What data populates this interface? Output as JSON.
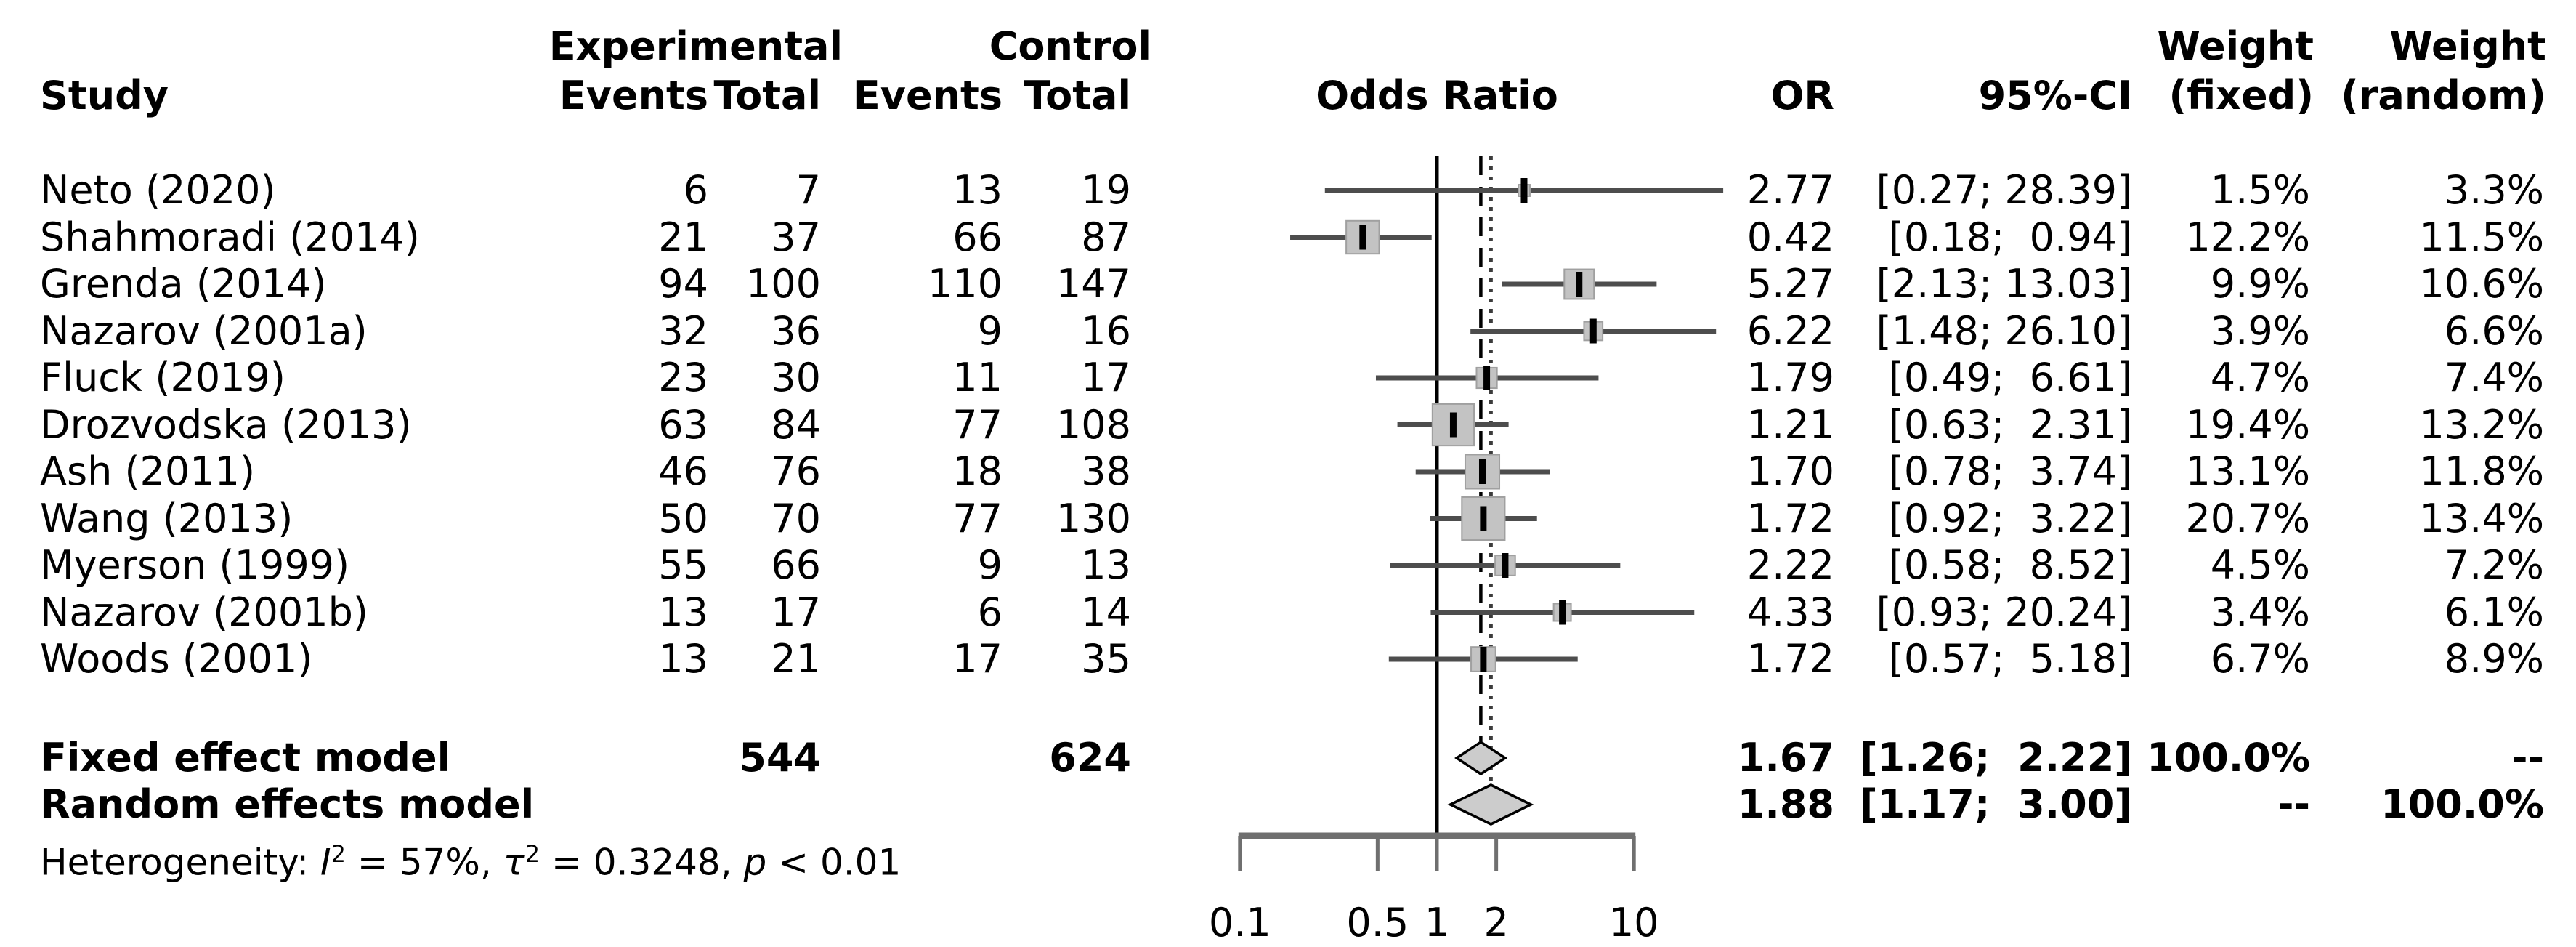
{
  "header": {
    "group_experimental": "Experimental",
    "group_control": "Control",
    "weight_top_fixed": "Weight",
    "weight_top_random": "Weight",
    "study": "Study",
    "events_exp": "Events",
    "total_exp": "Total",
    "events_ctrl": "Events",
    "total_ctrl": "Total",
    "odds_ratio": "Odds Ratio",
    "or": "OR",
    "ci": "95%-CI",
    "weight_fixed_sub": "(fixed)",
    "weight_random_sub": "(random)"
  },
  "heterogeneity": {
    "prefix": "Heterogeneity: ",
    "i_sym": "I",
    "i_sup": "2",
    "mid1": " = 57%, ",
    "tau_sym": "τ",
    "tau_sup": "2",
    "mid2": " = 0.3248, ",
    "p_sym": "p",
    "tail": " < 0.01"
  },
  "colors": {
    "text": "#000000",
    "whisker": "#4d4d4d",
    "square_fill": "#c3c3c3",
    "square_stroke": "#a0a0a0",
    "marker": "#000000",
    "ref_line": "#000000",
    "fixed_line": "#000000",
    "random_line": "#3c3c3c",
    "diamond_fill": "#cccccc",
    "diamond_stroke": "#000000",
    "axis": "#6f6f6f"
  },
  "chart_data": {
    "type": "forest",
    "x_scale": "log10",
    "ref_value": 1,
    "axis_ticks": [
      0.1,
      0.5,
      1,
      2,
      10
    ],
    "axis_tick_labels": [
      "0.1",
      "0.5",
      "1",
      "2",
      "10"
    ],
    "axis_range": [
      0.1,
      10
    ],
    "effect_measure": "Odds Ratio",
    "studies": [
      {
        "label": "Neto (2020)",
        "exp_events": "6",
        "exp_total": "7",
        "ctrl_events": "13",
        "ctrl_total": "19",
        "or": 2.77,
        "ci_low": 0.27,
        "ci_high": 28.39,
        "or_text": "2.77",
        "ci_text": "[0.27; 28.39]",
        "w_fixed": "1.5%",
        "w_random": "3.3%",
        "w_fixed_val": 1.5
      },
      {
        "label": "Shahmoradi (2014)",
        "exp_events": "21",
        "exp_total": "37",
        "ctrl_events": "66",
        "ctrl_total": "87",
        "or": 0.42,
        "ci_low": 0.18,
        "ci_high": 0.94,
        "or_text": "0.42",
        "ci_text": "[0.18;  0.94]",
        "w_fixed": "12.2%",
        "w_random": "11.5%",
        "w_fixed_val": 12.2
      },
      {
        "label": "Grenda (2014)",
        "exp_events": "94",
        "exp_total": "100",
        "ctrl_events": "110",
        "ctrl_total": "147",
        "or": 5.27,
        "ci_low": 2.13,
        "ci_high": 13.03,
        "or_text": "5.27",
        "ci_text": "[2.13; 13.03]",
        "w_fixed": "9.9%",
        "w_random": "10.6%",
        "w_fixed_val": 9.9
      },
      {
        "label": "Nazarov (2001a)",
        "exp_events": "32",
        "exp_total": "36",
        "ctrl_events": "9",
        "ctrl_total": "16",
        "or": 6.22,
        "ci_low": 1.48,
        "ci_high": 26.1,
        "or_text": "6.22",
        "ci_text": "[1.48; 26.10]",
        "w_fixed": "3.9%",
        "w_random": "6.6%",
        "w_fixed_val": 3.9
      },
      {
        "label": "Fluck (2019)",
        "exp_events": "23",
        "exp_total": "30",
        "ctrl_events": "11",
        "ctrl_total": "17",
        "or": 1.79,
        "ci_low": 0.49,
        "ci_high": 6.61,
        "or_text": "1.79",
        "ci_text": "[0.49;  6.61]",
        "w_fixed": "4.7%",
        "w_random": "7.4%",
        "w_fixed_val": 4.7
      },
      {
        "label": "Drozvodska (2013)",
        "exp_events": "63",
        "exp_total": "84",
        "ctrl_events": "77",
        "ctrl_total": "108",
        "or": 1.21,
        "ci_low": 0.63,
        "ci_high": 2.31,
        "or_text": "1.21",
        "ci_text": "[0.63;  2.31]",
        "w_fixed": "19.4%",
        "w_random": "13.2%",
        "w_fixed_val": 19.4
      },
      {
        "label": "Ash (2011)",
        "exp_events": "46",
        "exp_total": "76",
        "ctrl_events": "18",
        "ctrl_total": "38",
        "or": 1.7,
        "ci_low": 0.78,
        "ci_high": 3.74,
        "or_text": "1.70",
        "ci_text": "[0.78;  3.74]",
        "w_fixed": "13.1%",
        "w_random": "11.8%",
        "w_fixed_val": 13.1
      },
      {
        "label": "Wang (2013)",
        "exp_events": "50",
        "exp_total": "70",
        "ctrl_events": "77",
        "ctrl_total": "130",
        "or": 1.72,
        "ci_low": 0.92,
        "ci_high": 3.22,
        "or_text": "1.72",
        "ci_text": "[0.92;  3.22]",
        "w_fixed": "20.7%",
        "w_random": "13.4%",
        "w_fixed_val": 20.7
      },
      {
        "label": "Myerson (1999)",
        "exp_events": "55",
        "exp_total": "66",
        "ctrl_events": "9",
        "ctrl_total": "13",
        "or": 2.22,
        "ci_low": 0.58,
        "ci_high": 8.52,
        "or_text": "2.22",
        "ci_text": "[0.58;  8.52]",
        "w_fixed": "4.5%",
        "w_random": "7.2%",
        "w_fixed_val": 4.5
      },
      {
        "label": "Nazarov (2001b)",
        "exp_events": "13",
        "exp_total": "17",
        "ctrl_events": "6",
        "ctrl_total": "14",
        "or": 4.33,
        "ci_low": 0.93,
        "ci_high": 20.24,
        "or_text": "4.33",
        "ci_text": "[0.93; 20.24]",
        "w_fixed": "3.4%",
        "w_random": "6.1%",
        "w_fixed_val": 3.4
      },
      {
        "label": "Woods (2001)",
        "exp_events": "13",
        "exp_total": "21",
        "ctrl_events": "17",
        "ctrl_total": "35",
        "or": 1.72,
        "ci_low": 0.57,
        "ci_high": 5.18,
        "or_text": "1.72",
        "ci_text": "[0.57;  5.18]",
        "w_fixed": "6.7%",
        "w_random": "8.9%",
        "w_fixed_val": 6.7
      }
    ],
    "summaries": [
      {
        "key": "fixed",
        "label": "Fixed effect model",
        "exp_total": "544",
        "ctrl_total": "624",
        "or": 1.67,
        "ci_low": 1.26,
        "ci_high": 2.22,
        "or_text": "1.67",
        "ci_text": "[1.26;  2.22]",
        "w_fixed": "100.0%",
        "w_random": "--"
      },
      {
        "key": "random",
        "label": "Random effects model",
        "exp_total": "",
        "ctrl_total": "",
        "or": 1.88,
        "ci_low": 1.17,
        "ci_high": 3.0,
        "or_text": "1.88",
        "ci_text": "[1.17;  3.00]",
        "w_fixed": "--",
        "w_random": "100.0%"
      }
    ],
    "heterogeneity_text": "Heterogeneity: I2 = 57%, tau2 = 0.3248, p < 0.01"
  }
}
